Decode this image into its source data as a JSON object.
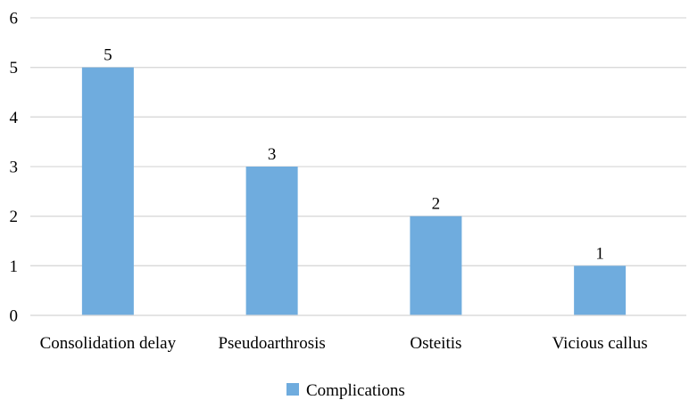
{
  "chart_data": {
    "type": "bar",
    "title": "",
    "xlabel": "",
    "ylabel": "",
    "categories": [
      "Consolidation delay",
      "Pseudoarthrosis",
      "Osteitis",
      "Vicious callus"
    ],
    "series": [
      {
        "name": "Complications",
        "values": [
          5,
          3,
          2,
          1
        ],
        "color": "#6FACDE"
      }
    ],
    "ylim": [
      0,
      6
    ],
    "yticks": [
      0,
      1,
      2,
      3,
      4,
      5,
      6
    ],
    "grid": true,
    "gridColor": "#D9D9D9",
    "axisColor": "#D9D9D9",
    "legend_position": "bottom",
    "data_labels": true
  }
}
